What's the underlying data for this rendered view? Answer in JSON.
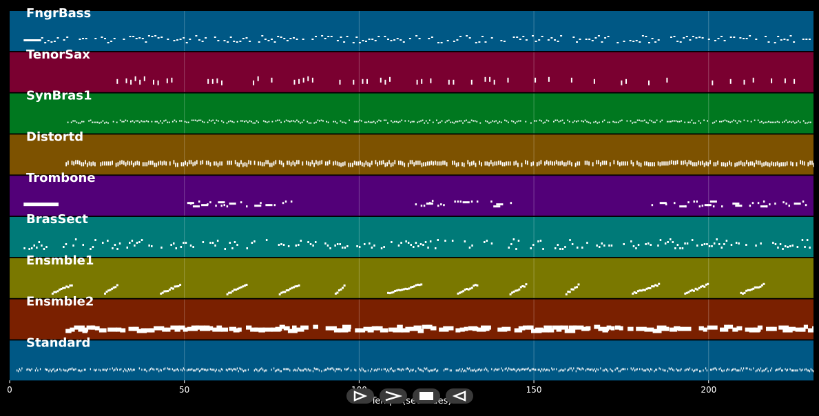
{
  "axis": {
    "xlabel": "Temps (secondes)",
    "ticks": [
      "0",
      "50",
      "100",
      "150",
      "200"
    ],
    "tick_values": [
      0,
      50,
      100,
      150,
      200
    ],
    "xmax_seconds": 230
  },
  "tracks": [
    {
      "name": "FngrBass",
      "color": "#005885",
      "pattern": "bass"
    },
    {
      "name": "TenorSax",
      "color": "#7a0030",
      "pattern": "sax"
    },
    {
      "name": "SynBras1",
      "color": "#00781f",
      "pattern": "synbras"
    },
    {
      "name": "Distortd",
      "color": "#7d5200",
      "pattern": "distort"
    },
    {
      "name": "Trombone",
      "color": "#520078",
      "pattern": "trombone"
    },
    {
      "name": "BrasSect",
      "color": "#007a78",
      "pattern": "brass"
    },
    {
      "name": "Ensmble1",
      "color": "#7a7800",
      "pattern": "ens1"
    },
    {
      "name": "Ensmble2",
      "color": "#7a2000",
      "pattern": "ens2"
    },
    {
      "name": "Standard",
      "color": "#005885",
      "pattern": "drums"
    }
  ],
  "transport": [
    {
      "name": "play-button",
      "icon": "play-icon"
    },
    {
      "name": "fast-forward-button",
      "icon": "fast-forward-icon"
    },
    {
      "name": "stop-button",
      "icon": "stop-icon"
    },
    {
      "name": "rewind-button",
      "icon": "rewind-icon"
    }
  ]
}
